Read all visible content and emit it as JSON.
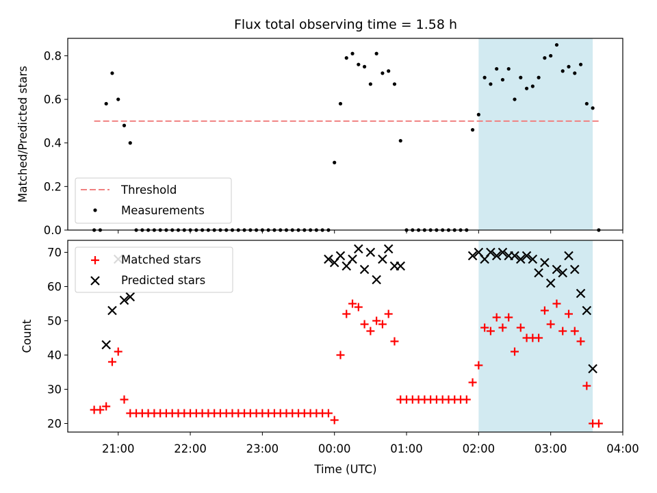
{
  "title": "Flux total observing time = 1.58 h",
  "colors": {
    "threshold": "#f08080",
    "measurement": "#000000",
    "matched": "#ff0000",
    "predicted": "#000000",
    "window": "#add8e6"
  },
  "chart_data": [
    {
      "type": "scatter",
      "panel": "top",
      "ylabel": "Matched/Predicted stars",
      "ylim": [
        0,
        0.88
      ],
      "yticks": [
        "0.0",
        "0.2",
        "0.4",
        "0.6",
        "0.8"
      ],
      "xlim_hours": [
        -3.7,
        4.0
      ],
      "highlight_window": [
        "02:00",
        "03:35"
      ],
      "legend": {
        "position": "lower-left",
        "entries": [
          "Threshold",
          "Measurements"
        ]
      },
      "threshold": {
        "name": "Threshold",
        "value": 0.5,
        "from": "20:40",
        "to": "03:40"
      },
      "series": [
        {
          "name": "Measurements",
          "x": [
            "20:40",
            "20:45",
            "20:50",
            "20:55",
            "21:00",
            "21:05",
            "21:10",
            "21:15",
            "21:20",
            "21:25",
            "21:30",
            "21:35",
            "21:40",
            "21:45",
            "21:50",
            "21:55",
            "22:00",
            "22:05",
            "22:10",
            "22:15",
            "22:20",
            "22:25",
            "22:30",
            "22:35",
            "22:40",
            "22:45",
            "22:50",
            "22:55",
            "23:00",
            "23:05",
            "23:10",
            "23:15",
            "23:20",
            "23:25",
            "23:30",
            "23:35",
            "23:40",
            "23:45",
            "23:50",
            "23:55",
            "00:00",
            "00:05",
            "00:10",
            "00:15",
            "00:20",
            "00:25",
            "00:30",
            "00:35",
            "00:40",
            "00:45",
            "00:50",
            "00:55",
            "01:00",
            "01:05",
            "01:10",
            "01:15",
            "01:20",
            "01:25",
            "01:30",
            "01:35",
            "01:40",
            "01:45",
            "01:50",
            "01:55",
            "02:00",
            "02:05",
            "02:10",
            "02:15",
            "02:20",
            "02:25",
            "02:30",
            "02:35",
            "02:40",
            "02:45",
            "02:50",
            "02:55",
            "03:00",
            "03:05",
            "03:10",
            "03:15",
            "03:20",
            "03:25",
            "03:30",
            "03:35",
            "03:40"
          ],
          "y": [
            0.0,
            0.0,
            0.58,
            0.72,
            0.6,
            0.48,
            0.4,
            0.0,
            0.0,
            0.0,
            0.0,
            0.0,
            0.0,
            0.0,
            0.0,
            0.0,
            0.0,
            0.0,
            0.0,
            0.0,
            0.0,
            0.0,
            0.0,
            0.0,
            0.0,
            0.0,
            0.0,
            0.0,
            0.0,
            0.0,
            0.0,
            0.0,
            0.0,
            0.0,
            0.0,
            0.0,
            0.0,
            0.0,
            0.0,
            0.0,
            0.31,
            0.58,
            0.79,
            0.81,
            0.76,
            0.75,
            0.67,
            0.81,
            0.72,
            0.73,
            0.67,
            0.41,
            0.0,
            0.0,
            0.0,
            0.0,
            0.0,
            0.0,
            0.0,
            0.0,
            0.0,
            0.0,
            0.0,
            0.46,
            0.53,
            0.7,
            0.67,
            0.74,
            0.69,
            0.74,
            0.6,
            0.7,
            0.65,
            0.66,
            0.7,
            0.79,
            0.8,
            0.85,
            0.73,
            0.75,
            0.72,
            0.76,
            0.58,
            0.56,
            0.0
          ]
        }
      ]
    },
    {
      "type": "scatter",
      "panel": "bottom",
      "xlabel": "Time (UTC)",
      "ylabel": "Count",
      "ylim": [
        17.5,
        73.5
      ],
      "yticks": [
        "20",
        "30",
        "40",
        "50",
        "60",
        "70"
      ],
      "xticks": [
        "21:00",
        "22:00",
        "23:00",
        "00:00",
        "01:00",
        "02:00",
        "03:00",
        "04:00"
      ],
      "xlim_hours": [
        -3.7,
        4.0
      ],
      "highlight_window": [
        "02:00",
        "03:35"
      ],
      "legend": {
        "position": "upper-left",
        "entries": [
          "Matched stars",
          "Predicted stars"
        ]
      },
      "series": [
        {
          "name": "Matched stars",
          "marker": "plus",
          "x": [
            "20:40",
            "20:45",
            "20:50",
            "20:55",
            "21:00",
            "21:05",
            "21:10",
            "21:15",
            "21:20",
            "21:25",
            "21:30",
            "21:35",
            "21:40",
            "21:45",
            "21:50",
            "21:55",
            "22:00",
            "22:05",
            "22:10",
            "22:15",
            "22:20",
            "22:25",
            "22:30",
            "22:35",
            "22:40",
            "22:45",
            "22:50",
            "22:55",
            "23:00",
            "23:05",
            "23:10",
            "23:15",
            "23:20",
            "23:25",
            "23:30",
            "23:35",
            "23:40",
            "23:45",
            "23:50",
            "23:55",
            "00:00",
            "00:05",
            "00:10",
            "00:15",
            "00:20",
            "00:25",
            "00:30",
            "00:35",
            "00:40",
            "00:45",
            "00:50",
            "00:55",
            "01:00",
            "01:05",
            "01:10",
            "01:15",
            "01:20",
            "01:25",
            "01:30",
            "01:35",
            "01:40",
            "01:45",
            "01:50",
            "01:55",
            "02:00",
            "02:05",
            "02:10",
            "02:15",
            "02:20",
            "02:25",
            "02:30",
            "02:35",
            "02:40",
            "02:45",
            "02:50",
            "02:55",
            "03:00",
            "03:05",
            "03:10",
            "03:15",
            "03:20",
            "03:25",
            "03:30",
            "03:35",
            "03:40"
          ],
          "y": [
            24,
            24,
            25,
            38,
            41,
            27,
            23,
            23,
            23,
            23,
            23,
            23,
            23,
            23,
            23,
            23,
            23,
            23,
            23,
            23,
            23,
            23,
            23,
            23,
            23,
            23,
            23,
            23,
            23,
            23,
            23,
            23,
            23,
            23,
            23,
            23,
            23,
            23,
            23,
            23,
            21,
            40,
            52,
            55,
            54,
            49,
            47,
            50,
            49,
            52,
            44,
            27,
            27,
            27,
            27,
            27,
            27,
            27,
            27,
            27,
            27,
            27,
            27,
            32,
            37,
            48,
            47,
            51,
            48,
            51,
            41,
            48,
            45,
            45,
            45,
            53,
            49,
            55,
            47,
            52,
            47,
            44,
            31,
            20,
            20
          ]
        },
        {
          "name": "Predicted stars",
          "marker": "x",
          "x": [
            "20:50",
            "20:55",
            "21:00",
            "21:05",
            "21:10",
            "23:55",
            "00:00",
            "00:05",
            "00:10",
            "00:15",
            "00:20",
            "00:25",
            "00:30",
            "00:35",
            "00:40",
            "00:45",
            "00:50",
            "00:55",
            "01:55",
            "02:00",
            "02:05",
            "02:10",
            "02:15",
            "02:20",
            "02:25",
            "02:30",
            "02:35",
            "02:40",
            "02:45",
            "02:50",
            "02:55",
            "03:00",
            "03:05",
            "03:10",
            "03:15",
            "03:20",
            "03:25",
            "03:30",
            "03:35"
          ],
          "y": [
            43,
            53,
            68,
            56,
            57,
            68,
            67,
            69,
            66,
            68,
            71,
            65,
            70,
            62,
            68,
            71,
            66,
            66,
            69,
            70,
            68,
            70,
            69,
            70,
            69,
            69,
            68,
            69,
            68,
            64,
            67,
            61,
            65,
            64,
            69,
            65,
            58,
            53,
            36
          ]
        }
      ]
    }
  ]
}
